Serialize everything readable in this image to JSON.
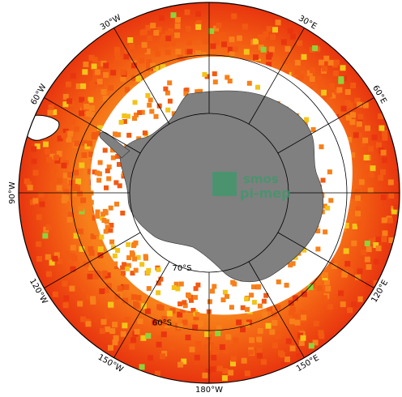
{
  "map": {
    "projection": "south-polar-stereographic",
    "colors": {
      "ocean_dark": "#e8350f",
      "ocean_mid": "#f25a12",
      "ocean_light": "#f7801a",
      "ocean_yellow": "#f2c41a",
      "ocean_green": "#8fd13a",
      "land": "#808080",
      "ice": "#ffffff",
      "grid": "#000000"
    },
    "longitude_labels": [
      {
        "text": "30°W",
        "lon": -30
      },
      {
        "text": "30°E",
        "lon": 30
      },
      {
        "text": "60°W",
        "lon": -60
      },
      {
        "text": "60°E",
        "lon": 60
      },
      {
        "text": "90°W",
        "lon": -90
      },
      {
        "text": "120°W",
        "lon": -120
      },
      {
        "text": "120°E",
        "lon": 120
      },
      {
        "text": "150°W",
        "lon": -150
      },
      {
        "text": "150°E",
        "lon": 150
      },
      {
        "text": "180°W",
        "lon": 180
      }
    ],
    "latitude_labels": [
      {
        "text": "70°S",
        "lat": -70
      },
      {
        "text": "60°S",
        "lat": -60
      }
    ],
    "logo": {
      "line1": "smos",
      "line2": "pi-mep",
      "color": "#3a9a6a"
    }
  }
}
